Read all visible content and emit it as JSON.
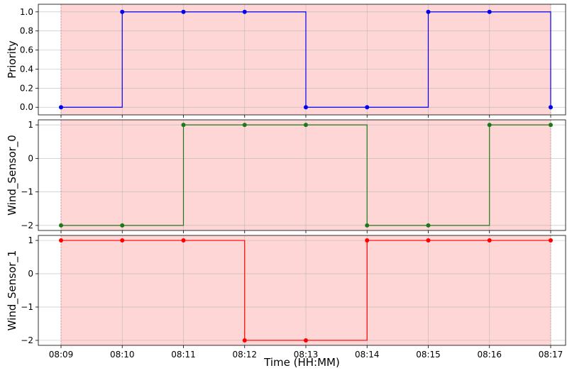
{
  "chart_data": {
    "type": "line",
    "step": "post",
    "x": [
      "08:09",
      "08:10",
      "08:11",
      "08:12",
      "08:13",
      "08:14",
      "08:15",
      "08:16",
      "08:17"
    ],
    "xlabel": "Time (HH:MM)",
    "shaded_region": {
      "from": "08:09",
      "to": "08:17",
      "color": "#ffd6d6"
    },
    "grid": true,
    "panels": [
      {
        "ylabel": "Priority",
        "color": "#0000ee",
        "ylim": [
          -0.08,
          1.08
        ],
        "yticks": [
          0.0,
          0.2,
          0.4,
          0.6,
          0.8,
          1.0
        ],
        "ytick_labels": [
          "0.0",
          "0.2",
          "0.4",
          "0.6",
          "0.8",
          "1.0"
        ],
        "values": [
          0,
          1,
          1,
          1,
          0,
          0,
          1,
          1,
          0
        ]
      },
      {
        "ylabel": "Wind_Sensor_0",
        "color": "#1a7a1a",
        "ylim": [
          -2.15,
          1.15
        ],
        "yticks": [
          -2,
          -1,
          0,
          1
        ],
        "ytick_labels": [
          "−2",
          "−1",
          "0",
          "1"
        ],
        "values": [
          -2,
          -2,
          1,
          1,
          1,
          -2,
          -2,
          1,
          1
        ]
      },
      {
        "ylabel": "Wind_Sensor_1",
        "color": "#ff0000",
        "ylim": [
          -2.15,
          1.15
        ],
        "yticks": [
          -2,
          -1,
          0,
          1
        ],
        "ytick_labels": [
          "−2",
          "−1",
          "0",
          "1"
        ],
        "values": [
          1,
          1,
          1,
          -2,
          -2,
          1,
          1,
          1,
          1
        ]
      }
    ]
  }
}
